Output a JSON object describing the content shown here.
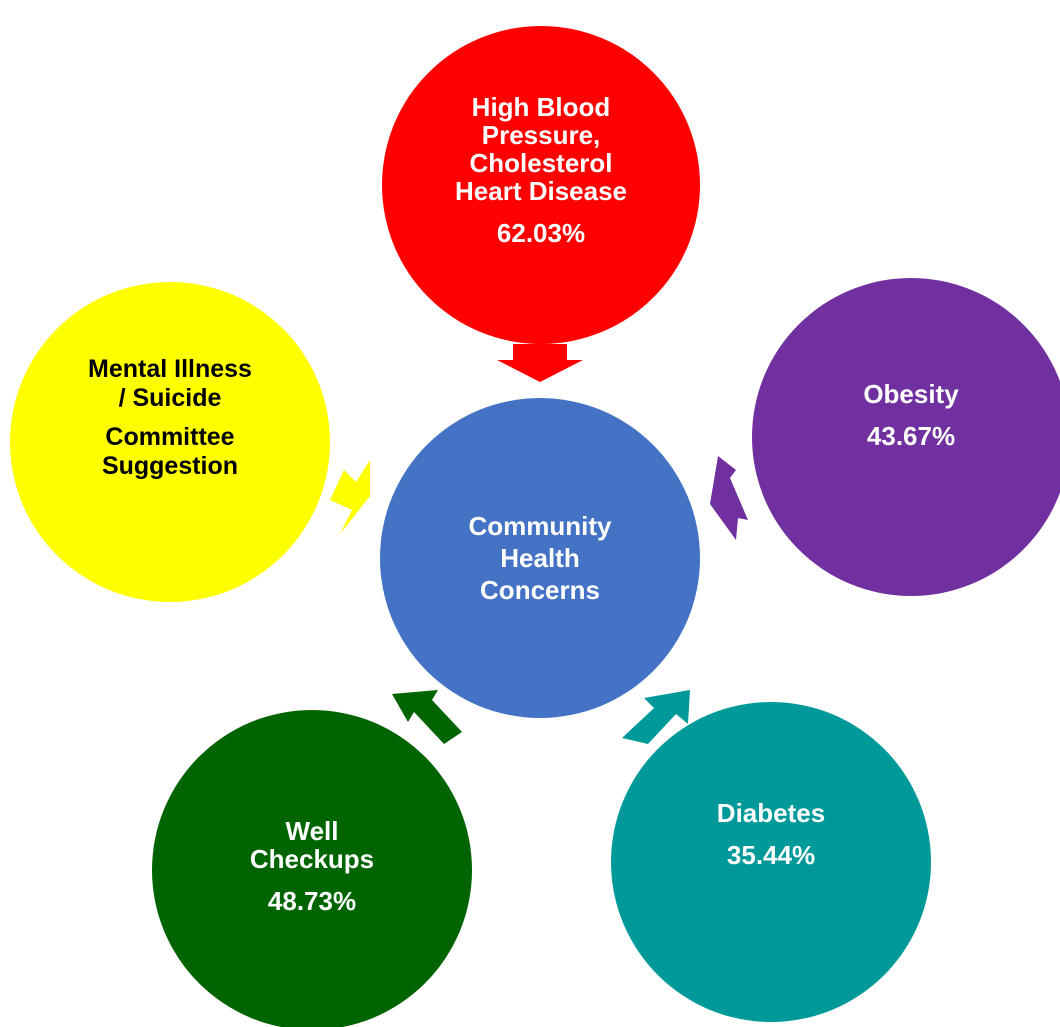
{
  "diagram": {
    "center": {
      "title": "Community\nHealth\nConcerns",
      "color": "#4472C4",
      "text_color": "#ffffff"
    },
    "nodes": {
      "top": {
        "title": "High Blood\nPressure,\nCholesterol\nHeart Disease",
        "value": "62.03%",
        "color": "#FF0000",
        "text_color": "#ffffff"
      },
      "left": {
        "title": "Mental Illness\n/ Suicide",
        "subtitle": "Committee\nSuggestion",
        "color": "#FFFF00",
        "text_color": "#000000"
      },
      "right": {
        "title": "Obesity",
        "value": "43.67%",
        "color": "#7030A0",
        "text_color": "#ffffff"
      },
      "bottom_left": {
        "title": "Well\nCheckups",
        "value": "48.73%",
        "color": "#006400",
        "text_color": "#ffffff"
      },
      "bottom_right": {
        "title": "Diabetes",
        "value": "35.44%",
        "color": "#00999A",
        "text_color": "#ffffff"
      }
    }
  }
}
